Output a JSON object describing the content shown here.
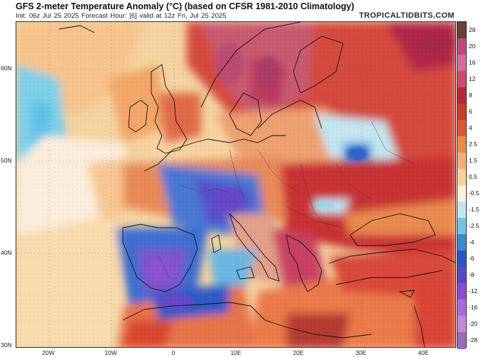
{
  "header": {
    "title": "GFS 2-meter Temperature Anomaly (°C) (based on CFSR 1981-2010 Climatology)",
    "subtitle": "Init: 06z Jul 25 2025   Forecast Hour: [6]   valid at 12z Fri, Jul 25 2025",
    "watermark": "TROPICALTIDBITS.COM"
  },
  "axes": {
    "lat_labels": [
      "60N",
      "50N",
      "40N",
      "30N"
    ],
    "lon_labels": [
      "20W",
      "10W",
      "0",
      "10E",
      "20E",
      "30E",
      "40E"
    ]
  },
  "colorbar": {
    "labels": [
      "28",
      "20",
      "16",
      "12",
      "8",
      "6",
      "4",
      "2.5",
      "1.5",
      "0.5",
      "-0.5",
      "-1.5",
      "-2.5",
      "-4",
      "-6",
      "-8",
      "-12",
      "-16",
      "-20",
      "-28"
    ],
    "colors": [
      "#6b3f33",
      "#c2487a",
      "#d86a9c",
      "#d04a6e",
      "#b8283c",
      "#cc3a2e",
      "#e0582e",
      "#ec8a4c",
      "#f4ae72",
      "#f8d09a",
      "#fbf1d8",
      "#bfe8f0",
      "#72c6e4",
      "#3a8ad6",
      "#2e55c6",
      "#5a48c4",
      "#8a4ed2",
      "#b068d8",
      "#c08ad8",
      "#9a6ab8"
    ]
  }
}
